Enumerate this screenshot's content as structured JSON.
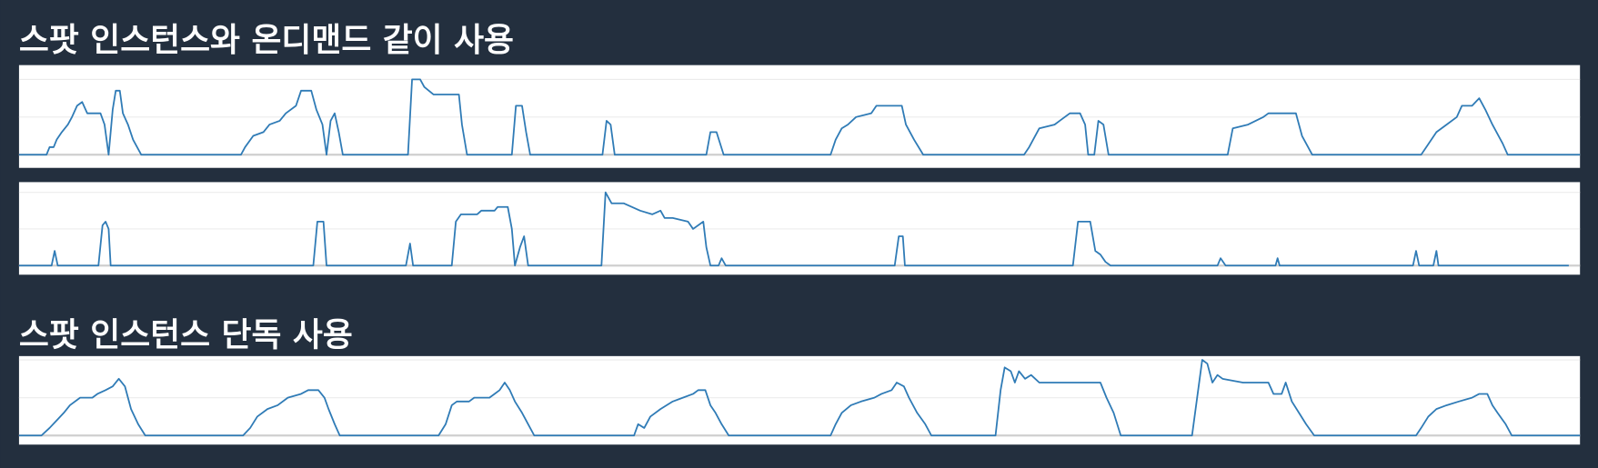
{
  "headings": [
    "스팟 인스턴스와 온디맨드 같이 사용",
    "스팟 인스턴스 단독 사용"
  ],
  "chart_data": [
    {
      "type": "line",
      "grid": true,
      "xlim": [
        18,
        1551
      ],
      "ylim": [
        -0.35,
        2.38
      ],
      "yticks": [
        0,
        1,
        2
      ],
      "x": [
        18,
        45,
        48,
        52,
        55,
        60,
        66,
        70,
        75,
        80,
        85,
        90,
        98,
        102,
        106,
        110,
        113,
        117,
        120,
        125,
        130,
        138,
        236,
        240,
        248,
        258,
        264,
        274,
        280,
        290,
        295,
        305,
        310,
        316,
        320,
        324,
        328,
        332,
        336,
        400,
        404,
        412,
        416,
        425,
        450,
        453,
        458,
        502,
        506,
        512,
        516,
        520,
        591,
        595,
        599,
        603,
        693,
        697,
        703,
        710,
        815,
        820,
        826,
        832,
        840,
        855,
        860,
        885,
        889,
        897,
        906,
        1005,
        1010,
        1020,
        1035,
        1040,
        1050,
        1060,
        1065,
        1068,
        1074,
        1078,
        1083,
        1088,
        1205,
        1210,
        1225,
        1240,
        1245,
        1272,
        1278,
        1288,
        1395,
        1400,
        1410,
        1420,
        1430,
        1435,
        1445,
        1452,
        1458,
        1465,
        1475,
        1480,
        1551
      ],
      "series": [
        {
          "color": "#2f7bb6",
          "values": [
            0,
            0,
            0.2,
            0.2,
            0.4,
            0.6,
            0.8,
            1,
            1.3,
            1.4,
            1.1,
            1.1,
            1.1,
            0.8,
            0,
            1.2,
            1.7,
            1.7,
            1.1,
            0.8,
            0.4,
            0,
            0,
            0.2,
            0.5,
            0.6,
            0.8,
            0.9,
            1.1,
            1.3,
            1.7,
            1.7,
            1.2,
            0.8,
            0,
            0.9,
            1.1,
            0.6,
            0,
            0,
            2,
            2,
            1.8,
            1.6,
            1.6,
            0.8,
            0,
            0,
            1.3,
            1.3,
            0.6,
            0,
            0,
            0.9,
            0.8,
            0,
            0,
            0.6,
            0.6,
            0,
            0,
            0.4,
            0.7,
            0.8,
            1,
            1.1,
            1.3,
            1.3,
            0.8,
            0.4,
            0,
            0,
            0.2,
            0.7,
            0.8,
            0.9,
            1.1,
            1.1,
            0.8,
            0,
            0,
            0.9,
            0.8,
            0,
            0,
            0.7,
            0.8,
            1,
            1.1,
            1.1,
            0.5,
            0,
            0,
            0.2,
            0.6,
            0.8,
            1,
            1.3,
            1.3,
            1.5,
            1.2,
            0.8,
            0.3,
            0,
            0
          ]
        }
      ]
    },
    {
      "type": "line",
      "grid": true,
      "xlim": [
        18,
        1551
      ],
      "ylim": [
        -0.25,
        2.28
      ],
      "yticks": [
        0,
        1,
        2
      ],
      "x": [
        18,
        50,
        53,
        56,
        96,
        100,
        103,
        106,
        108,
        307,
        311,
        317,
        320,
        398,
        402,
        405,
        443,
        447,
        452,
        468,
        472,
        485,
        488,
        498,
        502,
        505,
        510,
        514,
        518,
        590,
        594,
        600,
        612,
        628,
        640,
        648,
        652,
        660,
        675,
        680,
        690,
        693,
        697,
        705,
        708,
        712,
        878,
        882,
        886,
        888,
        1053,
        1058,
        1070,
        1075,
        1080,
        1085,
        1090,
        1195,
        1198,
        1203,
        1252,
        1254,
        1256,
        1387,
        1390,
        1393,
        1407,
        1410,
        1412,
        1540
      ],
      "series": [
        {
          "color": "#2f7bb6",
          "values": [
            0,
            0,
            0.4,
            0,
            0,
            1.1,
            1.2,
            1,
            0,
            0,
            1.2,
            1.2,
            0,
            0,
            0.6,
            0,
            0,
            1.2,
            1.4,
            1.4,
            1.5,
            1.5,
            1.6,
            1.6,
            1,
            0,
            0.5,
            0.8,
            0,
            0,
            2,
            1.7,
            1.7,
            1.5,
            1.4,
            1.5,
            1.3,
            1.3,
            1.2,
            1,
            1.2,
            0.5,
            0,
            0,
            0.2,
            0,
            0,
            0.8,
            0.8,
            0,
            0,
            1.2,
            1.2,
            0.4,
            0.3,
            0.1,
            0,
            0,
            0.2,
            0,
            0,
            0.2,
            0,
            0,
            0.4,
            0,
            0,
            0.4,
            0,
            0
          ]
        }
      ]
    },
    {
      "type": "line",
      "grid": true,
      "xlim": [
        18,
        1551
      ],
      "ylim": [
        -0.24,
        2.1
      ],
      "yticks": [
        0,
        1,
        2
      ],
      "x": [
        18,
        40,
        48,
        55,
        62,
        68,
        78,
        90,
        95,
        103,
        110,
        116,
        122,
        128,
        135,
        142,
        238,
        245,
        252,
        262,
        272,
        282,
        295,
        302,
        312,
        318,
        322,
        328,
        333,
        430,
        437,
        443,
        448,
        460,
        465,
        480,
        485,
        490,
        495,
        500,
        505,
        512,
        518,
        524,
        622,
        626,
        632,
        638,
        648,
        660,
        670,
        680,
        685,
        692,
        697,
        702,
        708,
        715,
        815,
        820,
        826,
        835,
        845,
        858,
        865,
        875,
        880,
        887,
        892,
        900,
        908,
        914,
        977,
        982,
        986,
        992,
        996,
        1000,
        1006,
        1012,
        1020,
        1038,
        1080,
        1086,
        1093,
        1100,
        1170,
        1175,
        1180,
        1185,
        1190,
        1195,
        1200,
        1220,
        1245,
        1250,
        1258,
        1262,
        1268,
        1275,
        1282,
        1290,
        1390,
        1395,
        1402,
        1410,
        1420,
        1432,
        1445,
        1452,
        1460,
        1465,
        1470,
        1478,
        1484,
        1551
      ],
      "series": [
        {
          "color": "#2f7bb6",
          "values": [
            0,
            0,
            0.2,
            0.4,
            0.6,
            0.8,
            1,
            1,
            1.1,
            1.2,
            1.3,
            1.5,
            1.3,
            0.7,
            0.3,
            0,
            0,
            0.2,
            0.5,
            0.7,
            0.8,
            1,
            1.1,
            1.2,
            1.2,
            1,
            0.7,
            0.3,
            0,
            0,
            0.3,
            0.8,
            0.9,
            0.9,
            1,
            1,
            1.1,
            1.2,
            1.4,
            1.2,
            0.9,
            0.6,
            0.3,
            0,
            0,
            0.3,
            0.2,
            0.5,
            0.7,
            0.9,
            1,
            1.1,
            1.2,
            1.2,
            0.8,
            0.6,
            0.3,
            0,
            0,
            0.3,
            0.6,
            0.8,
            0.9,
            1,
            1.1,
            1.2,
            1.4,
            1.3,
            1,
            0.6,
            0.3,
            0,
            0,
            1.2,
            1.8,
            1.7,
            1.4,
            1.7,
            1.5,
            1.6,
            1.4,
            1.4,
            1.4,
            1,
            0.6,
            0,
            0,
            1,
            2,
            1.9,
            1.4,
            1.6,
            1.5,
            1.4,
            1.4,
            1.1,
            1.1,
            1.4,
            0.9,
            0.6,
            0.3,
            0,
            0,
            0.2,
            0.5,
            0.7,
            0.8,
            0.9,
            1,
            1.1,
            1.1,
            0.8,
            0.6,
            0.3,
            0,
            0
          ]
        }
      ]
    }
  ]
}
